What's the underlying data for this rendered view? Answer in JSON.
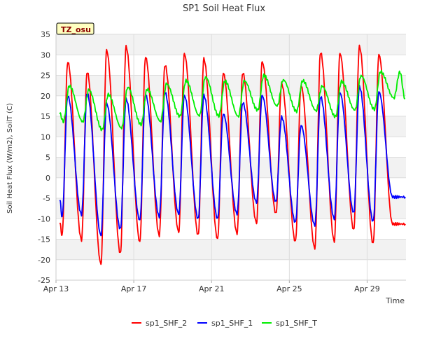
{
  "chart_data": {
    "type": "line",
    "title": "SP1 Soil Heat Flux",
    "xlabel": "Time",
    "ylabel": "Soil Heat Flux (W/m2), SoilT (C)",
    "badge": "TZ_osu",
    "ylim": [
      -25,
      35
    ],
    "yticks": [
      -25,
      -20,
      -15,
      -10,
      -5,
      0,
      5,
      10,
      15,
      20,
      25,
      30,
      35
    ],
    "xlim": [
      "2023-04-13",
      "2023-05-01"
    ],
    "xticks": [
      "Apr 13",
      "Apr 17",
      "Apr 21",
      "Apr 25",
      "Apr 29"
    ],
    "grid": true,
    "legend_position": "bottom",
    "series": [
      {
        "name": "sp1_SHF_2",
        "color": "#ff0000",
        "x": [
          "2023-04-13",
          "2023-04-14",
          "2023-04-15",
          "2023-04-16",
          "2023-04-17",
          "2023-04-18",
          "2023-04-19",
          "2023-04-20",
          "2023-04-21",
          "2023-04-22",
          "2023-04-23",
          "2023-04-24",
          "2023-04-25",
          "2023-04-26",
          "2023-04-27",
          "2023-04-28",
          "2023-04-29",
          "2023-04-30"
        ],
        "daily_max": [
          28.3,
          25.8,
          31.1,
          32.0,
          29.5,
          27.5,
          30.2,
          29.0,
          25.6,
          25.6,
          28.2,
          23.0,
          22.5,
          30.6,
          30.3,
          32.0,
          30.1,
          null
        ],
        "daily_min": [
          -14.0,
          -15.2,
          -21.0,
          -18.5,
          -15.7,
          -14.1,
          -13.2,
          -14.0,
          -15.0,
          -13.6,
          -11.0,
          -8.7,
          -15.6,
          -17.2,
          -15.5,
          -12.7,
          -16.1,
          -11.3
        ]
      },
      {
        "name": "sp1_SHF_1",
        "color": "#0000ff",
        "x": [
          "2023-04-13",
          "2023-04-14",
          "2023-04-15",
          "2023-04-16",
          "2023-04-17",
          "2023-04-18",
          "2023-04-19",
          "2023-04-20",
          "2023-04-21",
          "2023-04-22",
          "2023-04-23",
          "2023-04-24",
          "2023-04-25",
          "2023-04-26",
          "2023-04-27",
          "2023-04-28",
          "2023-04-29",
          "2023-04-30"
        ],
        "daily_max": [
          20.0,
          20.6,
          18.1,
          19.2,
          20.3,
          20.8,
          20.0,
          20.1,
          15.6,
          18.3,
          20.0,
          14.8,
          12.8,
          19.8,
          20.7,
          22.2,
          21.0,
          null
        ],
        "daily_min": [
          -9.5,
          -9.0,
          -14.0,
          -12.5,
          -10.4,
          -9.5,
          -8.8,
          -10.0,
          -10.0,
          -8.8,
          -6.0,
          -5.8,
          -10.9,
          -11.6,
          -10.0,
          -8.5,
          -10.7,
          -4.7
        ]
      },
      {
        "name": "sp1_SHF_T",
        "color": "#00ee00",
        "x": [
          "2023-04-13",
          "2023-04-14",
          "2023-04-15",
          "2023-04-16",
          "2023-04-17",
          "2023-04-18",
          "2023-04-19",
          "2023-04-20",
          "2023-04-21",
          "2023-04-22",
          "2023-04-23",
          "2023-04-24",
          "2023-04-25",
          "2023-04-26",
          "2023-04-27",
          "2023-04-28",
          "2023-04-29",
          "2023-04-30"
        ],
        "daily_max": [
          22.4,
          21.4,
          20.3,
          22.1,
          21.6,
          22.9,
          23.7,
          24.6,
          23.6,
          23.6,
          25.0,
          23.9,
          23.7,
          22.3,
          23.5,
          24.9,
          25.9,
          25.8
        ],
        "daily_min": [
          13.7,
          13.7,
          11.7,
          12.1,
          13.0,
          13.8,
          15.0,
          15.1,
          15.1,
          15.0,
          16.5,
          17.5,
          16.2,
          16.4,
          14.9,
          16.5,
          16.7,
          19.5
        ]
      }
    ]
  }
}
